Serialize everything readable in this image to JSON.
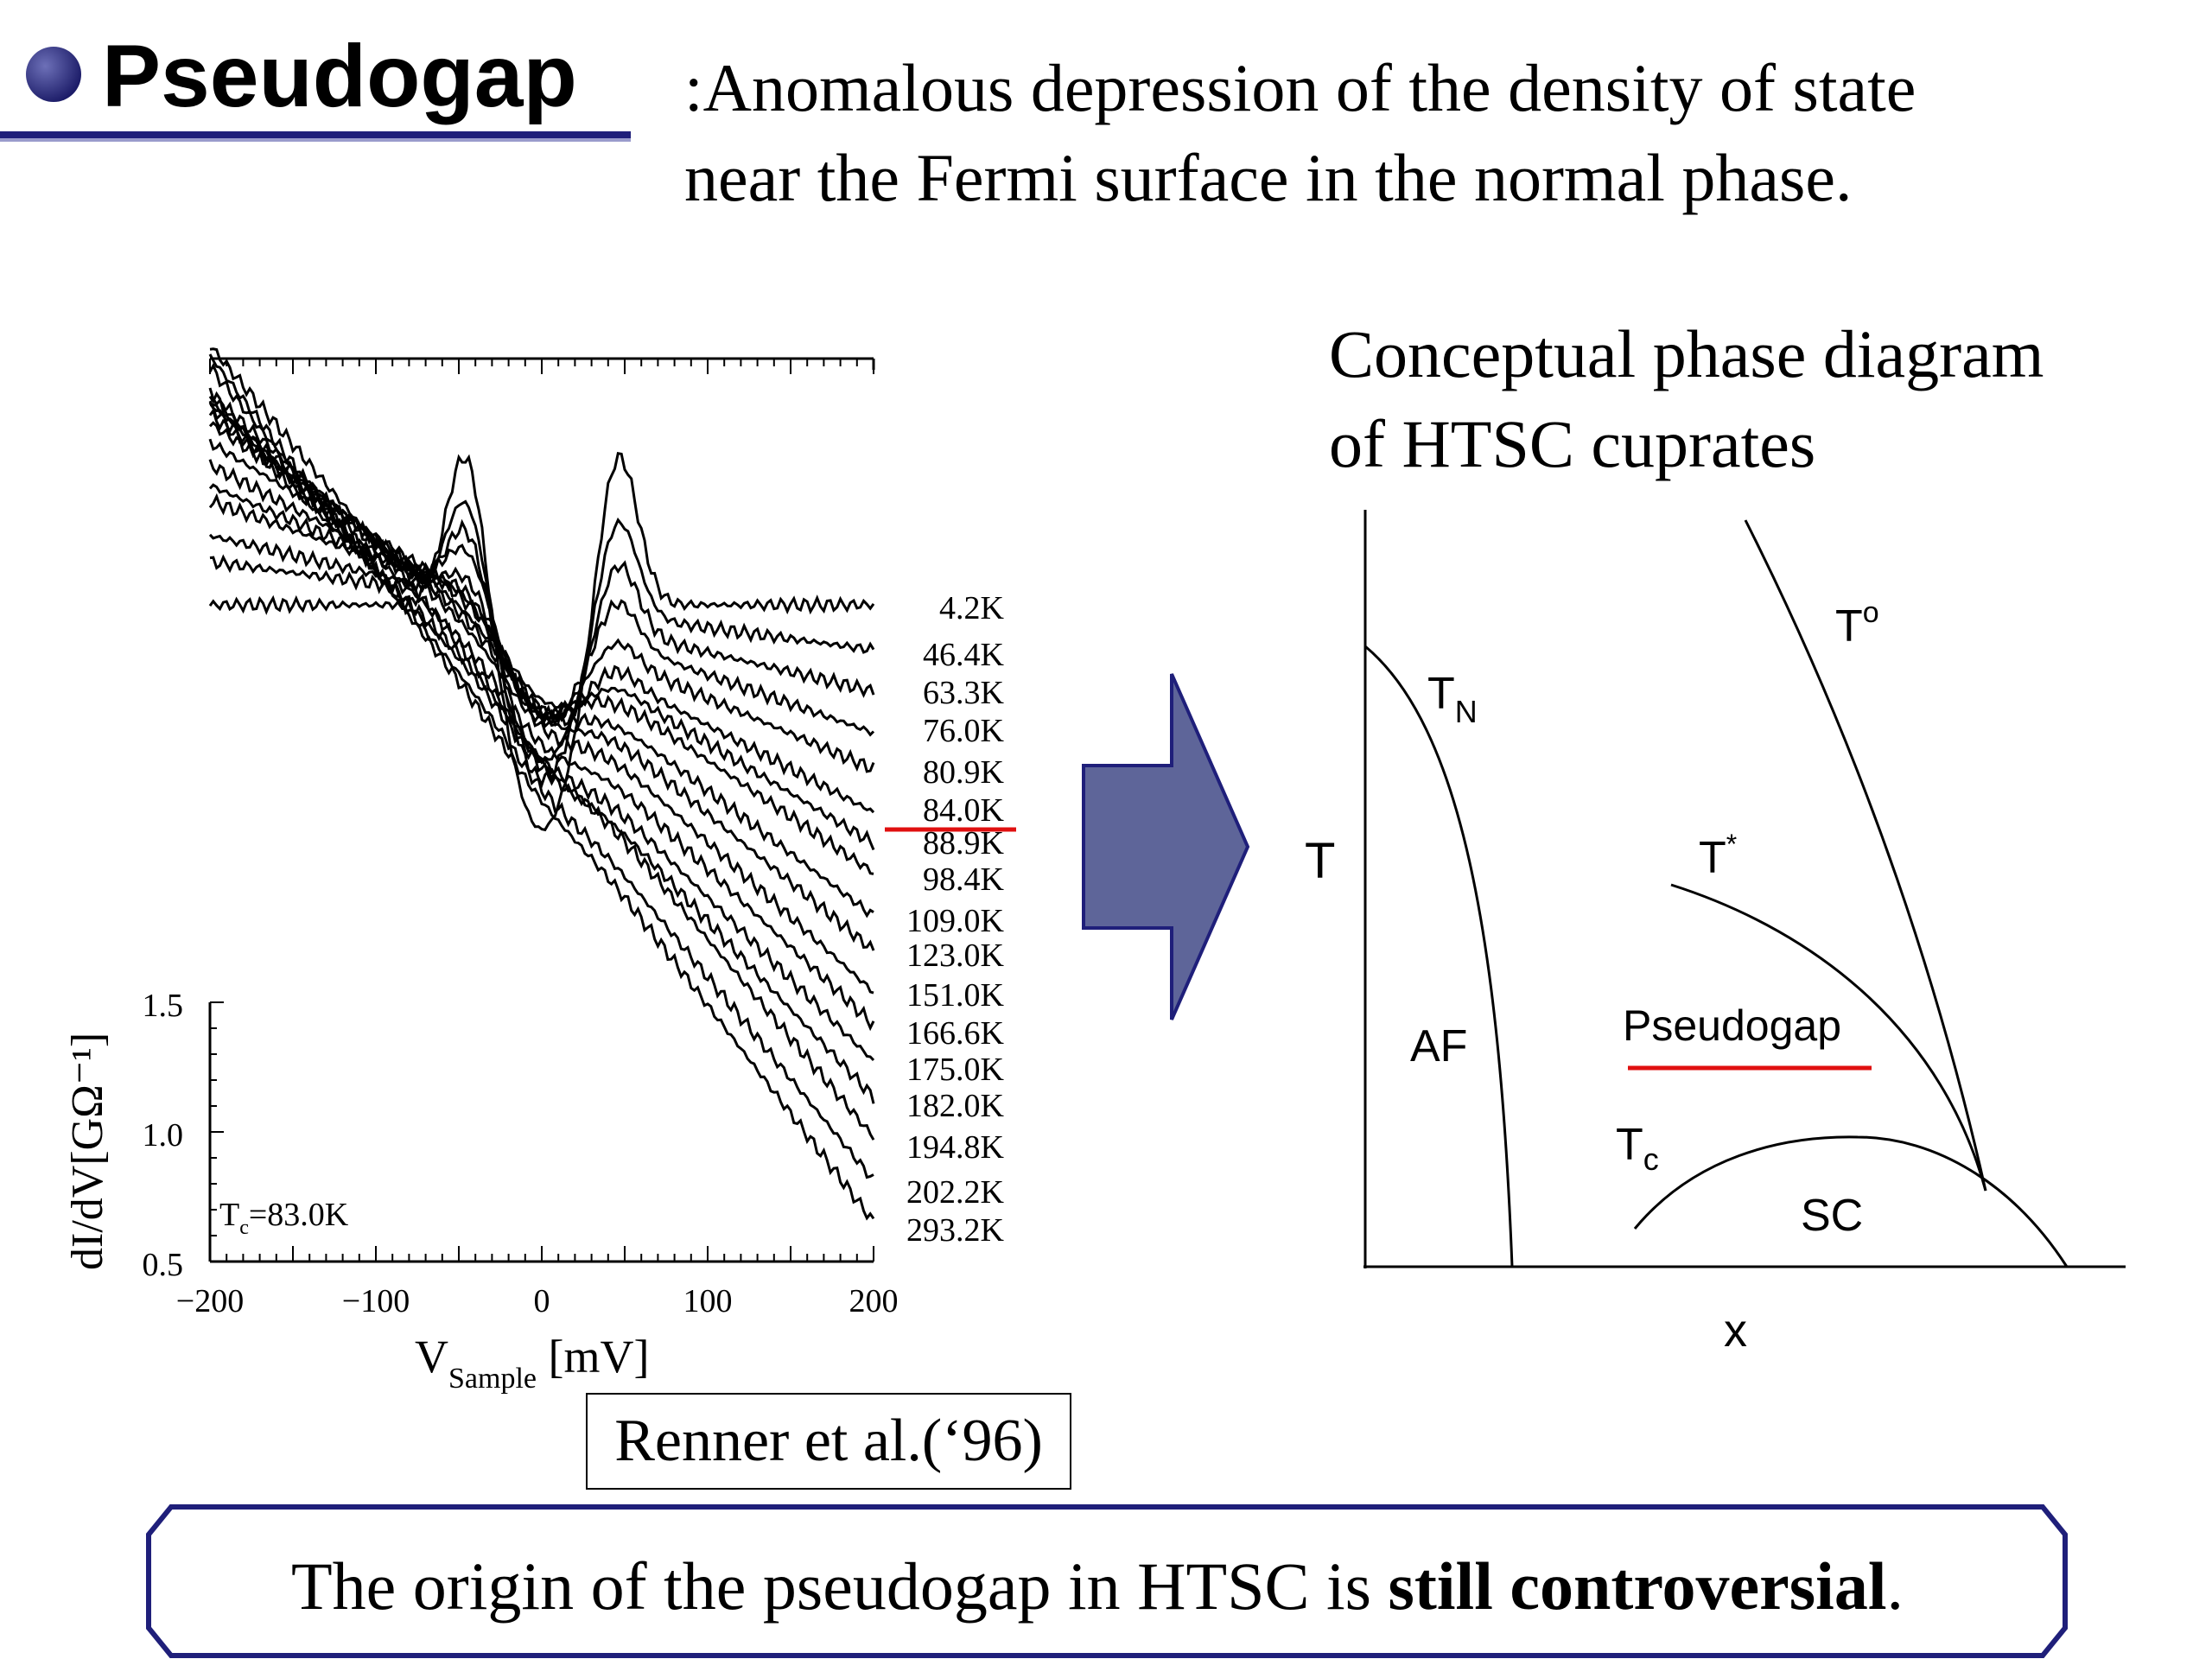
{
  "slide": {
    "title": "Pseudogap",
    "definition_line1": ":Anomalous depression of the density of state",
    "definition_line2": "near the Fermi surface in the normal phase.",
    "accent_color": "#1f1f7a"
  },
  "spectra": {
    "xlabel_main": "V",
    "xlabel_sub": "Sample",
    "xlabel_unit": " [mV]",
    "ylabel": "dI/dV[GΩ⁻¹]",
    "x_ticks": [
      "−200",
      "−100",
      "0",
      "100",
      "200"
    ],
    "y_ticks": [
      "0.5",
      "1.0",
      "1.5"
    ],
    "tc_label_main": "T",
    "tc_label_sub": "c",
    "tc_label_rest": "=83.0K",
    "temperatures": [
      "4.2K",
      "46.4K",
      "63.3K",
      "76.0K",
      "80.9K",
      "84.0K",
      "88.9K",
      "98.4K",
      "109.0K",
      "123.0K",
      "151.0K",
      "166.6K",
      "175.0K",
      "182.0K",
      "194.8K",
      "202.2K",
      "293.2K"
    ],
    "highlighted_temperature": "84.0K",
    "highlight_color": "#e01010",
    "citation": "Renner et al.(‘96)"
  },
  "phase_diagram": {
    "title_line1": "Conceptual phase diagram",
    "title_line2": "of HTSC cuprates",
    "axis_y": "T",
    "axis_x": "x",
    "label_TN": "T",
    "label_TN_sub": "N",
    "label_T0": "T",
    "label_T0_sup": "o",
    "label_Tstar": "T",
    "label_Tstar_sup": "*",
    "label_Tc": "T",
    "label_Tc_sub": "c",
    "label_AF": "AF",
    "label_pseudogap": "Pseudogap",
    "label_SC": "SC",
    "arrow_color": "#5e6599"
  },
  "conclusion": {
    "prefix": "The origin of the pseudogap in HTSC is ",
    "emphasis": "still controversial",
    "suffix": "."
  }
}
